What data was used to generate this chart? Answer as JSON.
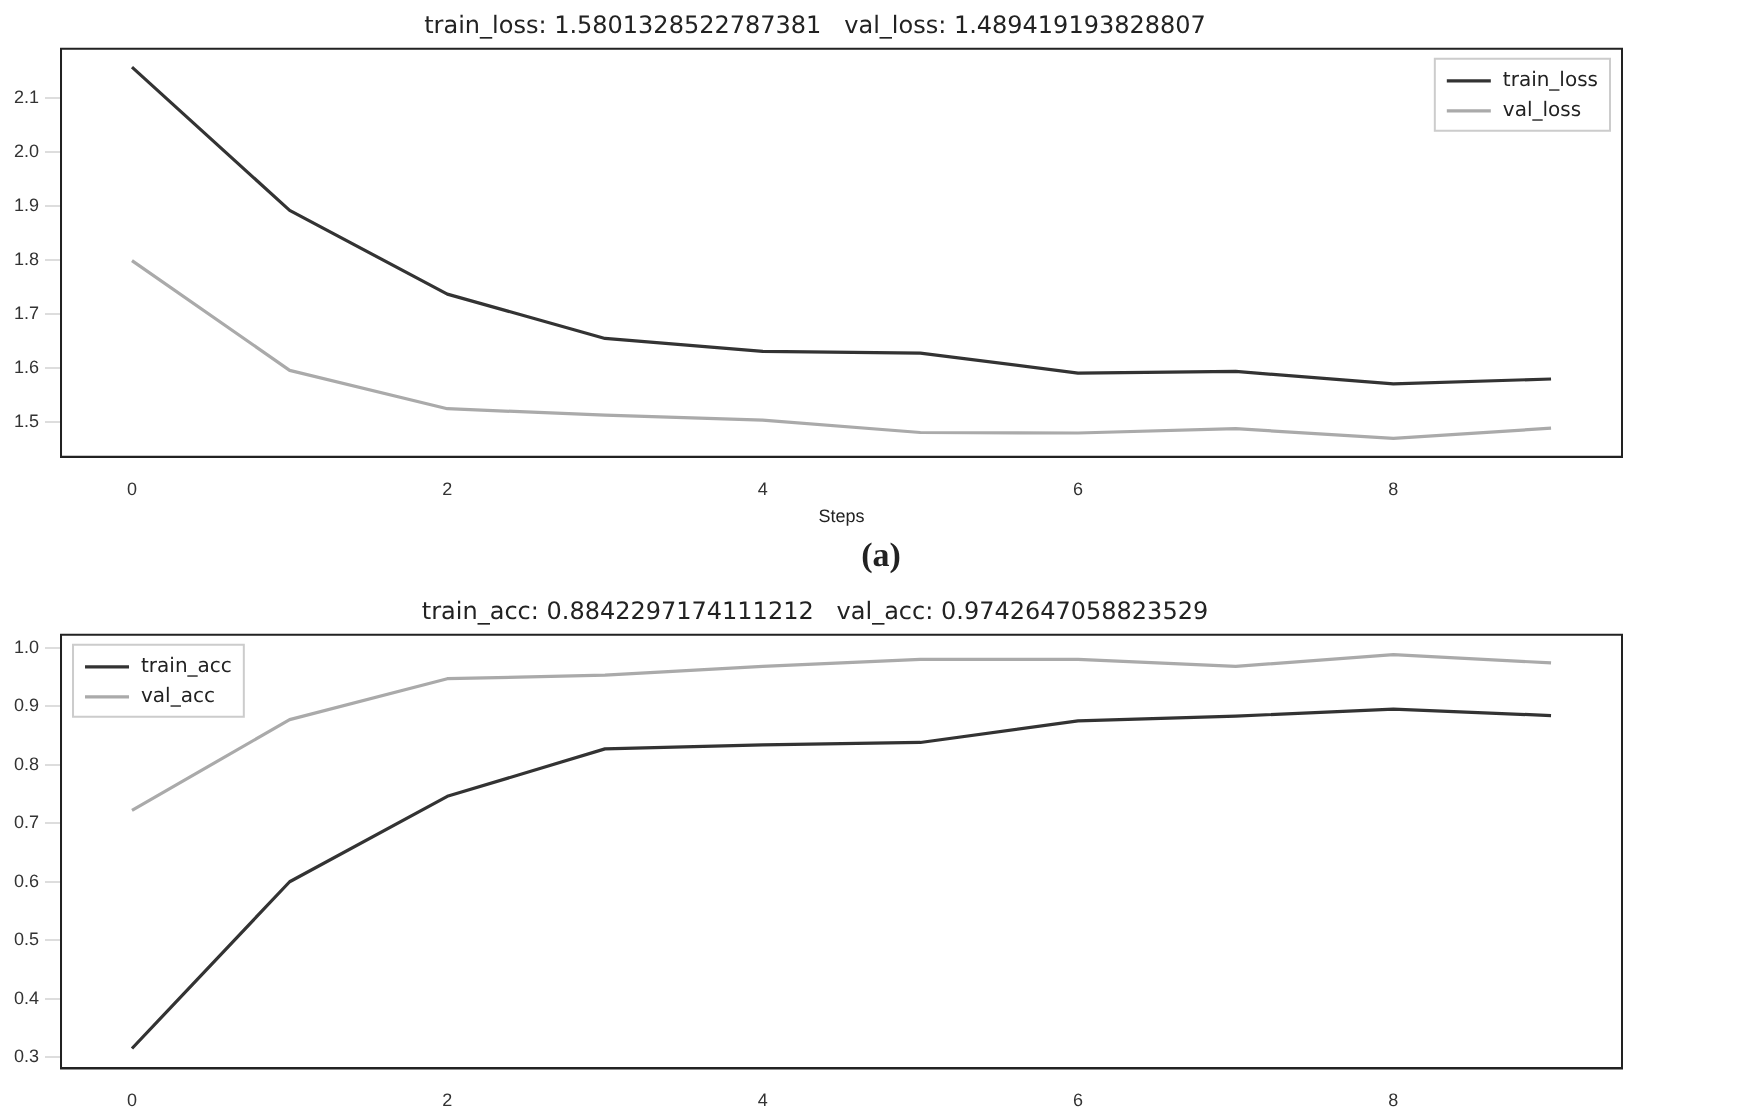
{
  "chart_data": [
    {
      "type": "line",
      "title": "train_loss: 1.5801328522787381   val_loss: 1.489419193828807",
      "xlabel": "Steps",
      "annotations": [
        "(a)"
      ],
      "x": [
        0,
        1,
        2,
        3,
        4,
        5,
        6,
        7,
        8,
        9
      ],
      "series": [
        {
          "name": "train_loss",
          "color": "#333333",
          "values": [
            2.157,
            1.892,
            1.737,
            1.655,
            1.631,
            1.628,
            1.591,
            1.594,
            1.571,
            1.58
          ]
        },
        {
          "name": "val_loss",
          "color": "#aaaaaa",
          "values": [
            1.799,
            1.596,
            1.525,
            1.513,
            1.504,
            1.481,
            1.48,
            1.488,
            1.47,
            1.489
          ]
        }
      ],
      "xlim": [
        -0.45,
        9.45
      ],
      "xticks": [
        0,
        2,
        4,
        6,
        8
      ],
      "ylim": [
        1.436,
        2.191
      ],
      "yticks": [
        {
          "value": 1.5,
          "label": "1.5"
        },
        {
          "value": 1.6,
          "label": "1.6"
        },
        {
          "value": 1.7,
          "label": "1.7"
        },
        {
          "value": 1.8,
          "label": "1.8"
        },
        {
          "value": 1.9,
          "label": "1.9"
        },
        {
          "value": 2.0,
          "label": "2.0"
        },
        {
          "value": 2.1,
          "label": "2.1"
        }
      ],
      "legend": "top right",
      "grid": false,
      "marker": "none",
      "line_style": "solid"
    },
    {
      "type": "line",
      "title": "train_acc: 0.8842297174111212   val_acc: 0.9742647058823529",
      "x": [
        0,
        1,
        2,
        3,
        4,
        5,
        6,
        7,
        8,
        9
      ],
      "series": [
        {
          "name": "train_acc",
          "color": "#333333",
          "values": [
            0.315,
            0.6,
            0.746,
            0.827,
            0.834,
            0.838,
            0.875,
            0.883,
            0.895,
            0.884
          ]
        },
        {
          "name": "val_acc",
          "color": "#aaaaaa",
          "values": [
            0.722,
            0.877,
            0.947,
            0.953,
            0.968,
            0.98,
            0.98,
            0.968,
            0.988,
            0.974
          ]
        }
      ],
      "xlim": [
        -0.45,
        9.45
      ],
      "xticks": [
        0,
        2,
        4,
        6,
        8
      ],
      "ylim": [
        0.281,
        1.022
      ],
      "yticks": [
        {
          "value": 0.3,
          "label": "0.3"
        },
        {
          "value": 0.4,
          "label": "0.4"
        },
        {
          "value": 0.5,
          "label": "0.5"
        },
        {
          "value": 0.6,
          "label": "0.6"
        },
        {
          "value": 0.7,
          "label": "0.7"
        },
        {
          "value": 0.8,
          "label": "0.8"
        },
        {
          "value": 0.9,
          "label": "0.9"
        },
        {
          "value": 1.0,
          "label": "1.0"
        }
      ],
      "legend": "top left",
      "grid": false,
      "marker": "none",
      "line_style": "solid"
    }
  ]
}
